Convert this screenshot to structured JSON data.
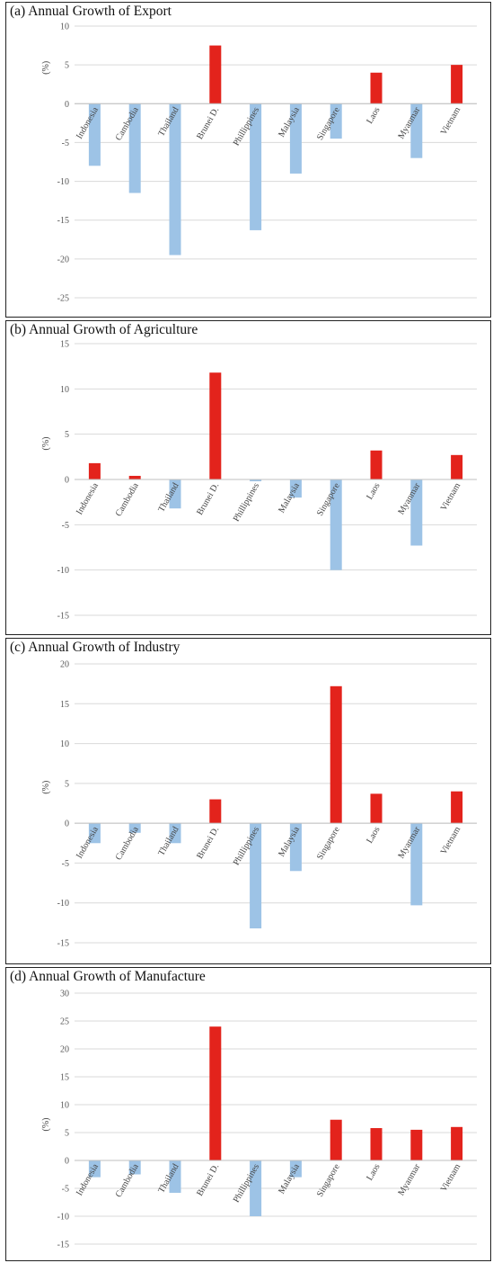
{
  "colors": {
    "positive": "#e3231c",
    "negative": "#9dc3e6",
    "grid": "#d9d9d9"
  },
  "chart_data": [
    {
      "type": "bar",
      "title": "(a) Annual Growth of Export",
      "ylabel": "(%)",
      "ylim": [
        -25,
        10
      ],
      "yticks": [
        10,
        5,
        0,
        -5,
        -10,
        -15,
        -20,
        -25
      ],
      "grid": true,
      "categories": [
        "Indonesia",
        "Cambodia",
        "Thailand",
        "Brunei D.",
        "Phillippines",
        "Malaysia",
        "Singapore",
        "Laos",
        "Myanmar",
        "Vietnam"
      ],
      "values": [
        -8.0,
        -11.5,
        -19.5,
        7.5,
        -16.3,
        -9.0,
        -4.5,
        4.0,
        -7.0,
        5.0
      ]
    },
    {
      "type": "bar",
      "title": "(b) Annual Growth of Agriculture",
      "ylabel": "(%)",
      "ylim": [
        -15,
        15
      ],
      "yticks": [
        15,
        10,
        5,
        0,
        -5,
        -10,
        -15
      ],
      "grid": true,
      "categories": [
        "Indonesia",
        "Cambodia",
        "Thailand",
        "Brunei D.",
        "Phillippines",
        "Malaysia",
        "Singapore",
        "Laos",
        "Myanmar",
        "Vietnam"
      ],
      "values": [
        1.8,
        0.4,
        -3.2,
        11.8,
        -0.2,
        -2.0,
        -10.0,
        3.2,
        -7.3,
        2.7
      ]
    },
    {
      "type": "bar",
      "title": "(c) Annual Growth of Industry",
      "ylabel": "(%)",
      "ylim": [
        -15,
        20
      ],
      "yticks": [
        20,
        15,
        10,
        5,
        0,
        -5,
        -10,
        -15
      ],
      "grid": true,
      "categories": [
        "Indonesia",
        "Cambodia",
        "Thailand",
        "Brunei D.",
        "Phillippines",
        "Malaysia",
        "Singapore",
        "Laos",
        "Myanmar",
        "Vietnam"
      ],
      "values": [
        -2.5,
        -1.2,
        -2.5,
        3.0,
        -13.2,
        -6.0,
        17.2,
        3.7,
        -10.3,
        4.0
      ]
    },
    {
      "type": "bar",
      "title": "(d) Annual Growth of Manufacture",
      "ylabel": "(%)",
      "ylim": [
        -15,
        30
      ],
      "yticks": [
        30,
        25,
        20,
        15,
        10,
        5,
        0,
        -5,
        -10,
        -15
      ],
      "grid": true,
      "categories": [
        "Indonesia",
        "Cambodia",
        "Thailand",
        "Brunei D.",
        "Phillippines",
        "Malaysia",
        "Singapore",
        "Laos",
        "Myanmar",
        "Vietnam"
      ],
      "values": [
        -3.0,
        -2.5,
        -5.8,
        24.0,
        -10.0,
        -3.0,
        7.3,
        5.8,
        5.5,
        6.0
      ]
    }
  ]
}
